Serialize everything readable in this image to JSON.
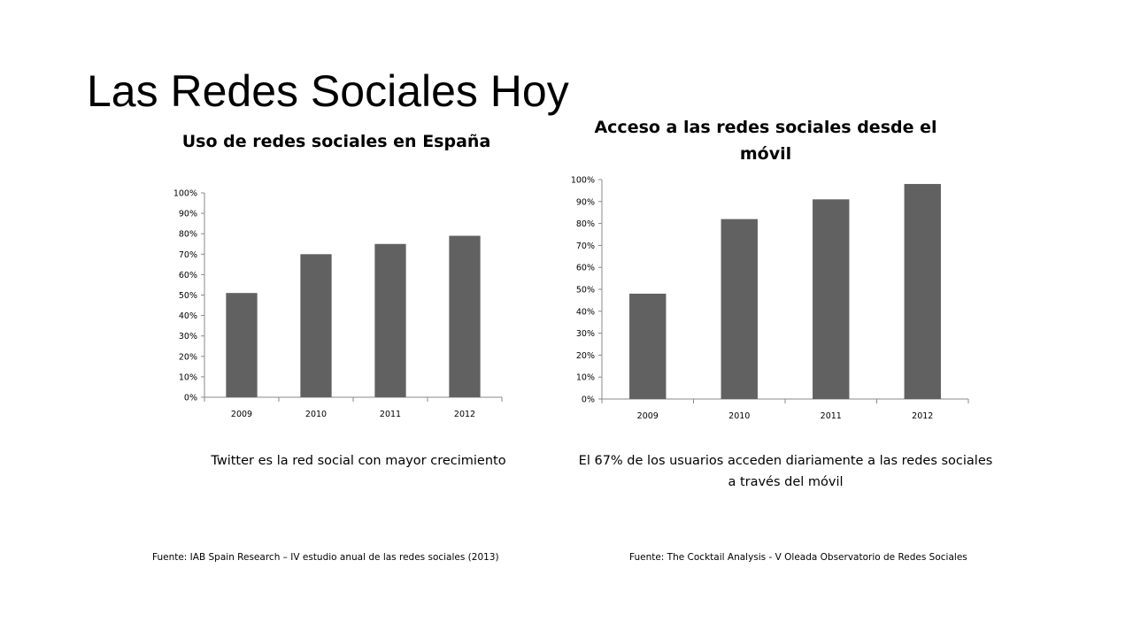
{
  "slide": {
    "title": "Las Redes Sociales Hoy"
  },
  "colors": {
    "bar": "#616161",
    "axis": "#888888"
  },
  "captions": {
    "left": "Twitter es la red social con mayor crecimiento",
    "right": "El 67% de los usuarios acceden diariamente a las redes sociales a través del móvil"
  },
  "sources": {
    "left": "Fuente: IAB Spain Research – IV estudio anual de las redes sociales (2013)",
    "right": "Fuente: The Cocktail Analysis  - V Oleada Observatorio de Redes Sociales"
  },
  "chart_data": [
    {
      "type": "bar",
      "title": "Uso de redes sociales en España",
      "categories": [
        "2009",
        "2010",
        "2011",
        "2012"
      ],
      "values": [
        0.51,
        0.7,
        0.75,
        0.79
      ],
      "ylim": [
        0,
        1
      ],
      "yticks": [
        "0%",
        "10%",
        "20%",
        "30%",
        "40%",
        "50%",
        "60%",
        "70%",
        "80%",
        "90%",
        "100%"
      ],
      "xlabel": "",
      "ylabel": "",
      "grid": false,
      "legend": "none"
    },
    {
      "type": "bar",
      "title": "Acceso a las redes sociales desde el móvil",
      "categories": [
        "2009",
        "2010",
        "2011",
        "2012"
      ],
      "values": [
        0.48,
        0.82,
        0.91,
        0.98
      ],
      "ylim": [
        0,
        1
      ],
      "yticks": [
        "0%",
        "10%",
        "20%",
        "30%",
        "40%",
        "50%",
        "60%",
        "70%",
        "80%",
        "90%",
        "100%"
      ],
      "xlabel": "",
      "ylabel": "",
      "grid": false,
      "legend": "none"
    }
  ]
}
